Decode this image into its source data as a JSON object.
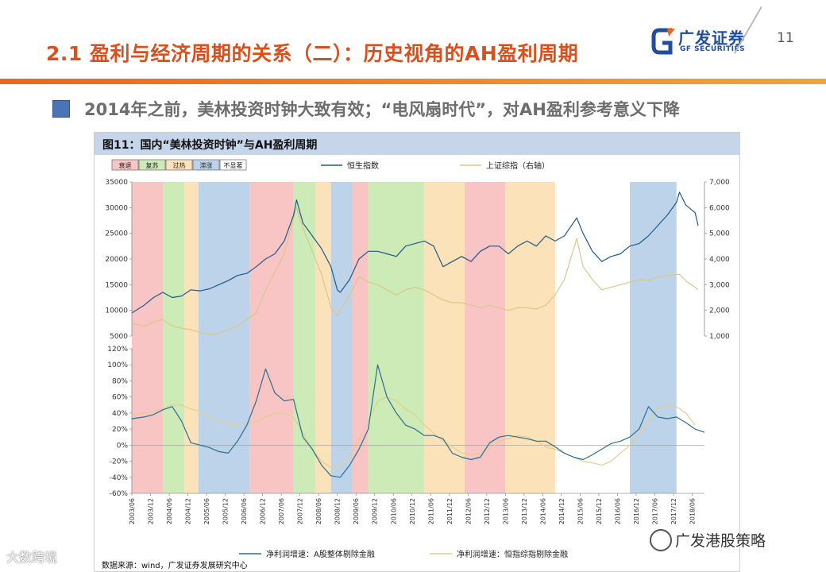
{
  "header": {
    "title": "2.1 盈利与经济周期的关系（二）：历史视角的AH盈利周期",
    "page_number": "11"
  },
  "logo": {
    "name_cn": "广发证券",
    "name_en": "GF SECURITIES"
  },
  "subtitle": "2014年之前，美林投资时钟大致有效；“电风扇时代”，对AH盈利参考意义下降",
  "figure_title": "图11：国内“美林投资时钟”与AH盈利周期",
  "source": "数据来源：wind，广发证券发展研究中心",
  "watermark_left": "大数跨境",
  "watermark_right": "广发港股策略",
  "colors": {
    "recession": "#f9c4c4",
    "recovery": "#cdebb7",
    "overheat": "#fbe2b9",
    "stagflation": "#bcd3ea",
    "hsi": "#1f5a8a",
    "shci": "#d9c88a",
    "growth_a": "#2d6e8e",
    "growth_hsi": "#e2cf8c"
  },
  "chart_data": [
    {
      "type": "line",
      "title": "",
      "regime_legend": [
        "衰退",
        "复苏",
        "过热",
        "滞涨",
        "不显著"
      ],
      "regimes": [
        {
          "name": "衰退",
          "start": 2003.42,
          "end": 2004.25
        },
        {
          "name": "复苏",
          "start": 2004.25,
          "end": 2004.83
        },
        {
          "name": "过热",
          "start": 2004.83,
          "end": 2005.2
        },
        {
          "name": "滞涨",
          "start": 2005.2,
          "end": 2006.58
        },
        {
          "name": "衰退",
          "start": 2006.58,
          "end": 2007.75
        },
        {
          "name": "复苏",
          "start": 2007.75,
          "end": 2008.33
        },
        {
          "name": "过热",
          "start": 2008.33,
          "end": 2008.75
        },
        {
          "name": "滞涨",
          "start": 2008.75,
          "end": 2009.33
        },
        {
          "name": "衰退",
          "start": 2009.33,
          "end": 2009.75
        },
        {
          "name": "复苏",
          "start": 2009.75,
          "end": 2011.25
        },
        {
          "name": "过热",
          "start": 2011.25,
          "end": 2012.33
        },
        {
          "name": "衰退",
          "start": 2012.33,
          "end": 2013.42
        },
        {
          "name": "过热",
          "start": 2013.42,
          "end": 2014.75
        },
        {
          "name": "滞涨",
          "start": 2016.75,
          "end": 2018.0
        }
      ],
      "series": [
        {
          "name": "恒生指数",
          "axis": "left",
          "x": [
            2003.42,
            2003.75,
            2004.0,
            2004.25,
            2004.5,
            2004.75,
            2005.0,
            2005.25,
            2005.5,
            2005.75,
            2006.0,
            2006.25,
            2006.5,
            2006.75,
            2007.0,
            2007.25,
            2007.5,
            2007.75,
            2007.83,
            2008.0,
            2008.25,
            2008.5,
            2008.75,
            2008.92,
            2009.0,
            2009.25,
            2009.5,
            2009.75,
            2010.0,
            2010.25,
            2010.5,
            2010.75,
            2011.0,
            2011.25,
            2011.5,
            2011.75,
            2012.0,
            2012.25,
            2012.5,
            2012.75,
            2013.0,
            2013.25,
            2013.5,
            2013.75,
            2014.0,
            2014.25,
            2014.5,
            2014.75,
            2015.0,
            2015.33,
            2015.5,
            2015.75,
            2016.0,
            2016.25,
            2016.5,
            2016.75,
            2017.0,
            2017.25,
            2017.5,
            2017.75,
            2018.0,
            2018.08,
            2018.25,
            2018.5,
            2018.58
          ],
          "values": [
            9500,
            11000,
            12500,
            13500,
            12500,
            12800,
            14000,
            13800,
            14200,
            15000,
            15800,
            16800,
            17200,
            18500,
            20000,
            21000,
            23500,
            28500,
            31500,
            27000,
            24500,
            22000,
            18500,
            14000,
            13500,
            16000,
            20000,
            21500,
            21500,
            21000,
            20500,
            22500,
            23000,
            23500,
            22500,
            18500,
            19500,
            20500,
            19500,
            21500,
            22500,
            22500,
            21000,
            22500,
            23500,
            22500,
            24500,
            23500,
            24500,
            28000,
            25000,
            21500,
            19500,
            20500,
            21000,
            22500,
            23000,
            24500,
            26500,
            28500,
            31000,
            33000,
            30500,
            29000,
            26500
          ]
        },
        {
          "name": "上证综指（右轴）",
          "axis": "right",
          "x": [
            2003.42,
            2003.75,
            2004.0,
            2004.25,
            2004.5,
            2004.75,
            2005.0,
            2005.25,
            2005.5,
            2005.75,
            2006.0,
            2006.25,
            2006.5,
            2006.75,
            2007.0,
            2007.25,
            2007.5,
            2007.75,
            2007.83,
            2008.0,
            2008.25,
            2008.5,
            2008.75,
            2008.92,
            2009.0,
            2009.25,
            2009.5,
            2009.75,
            2010.0,
            2010.25,
            2010.5,
            2010.75,
            2011.0,
            2011.25,
            2011.5,
            2011.75,
            2012.0,
            2012.25,
            2012.5,
            2012.75,
            2013.0,
            2013.25,
            2013.5,
            2013.75,
            2014.0,
            2014.25,
            2014.5,
            2014.75,
            2015.0,
            2015.33,
            2015.5,
            2015.75,
            2016.0,
            2016.25,
            2016.5,
            2016.75,
            2017.0,
            2017.25,
            2017.5,
            2017.75,
            2018.0,
            2018.08,
            2018.25,
            2018.5,
            2018.58
          ],
          "values": [
            1500,
            1380,
            1550,
            1650,
            1400,
            1300,
            1250,
            1150,
            1050,
            1100,
            1250,
            1400,
            1650,
            1900,
            2800,
            3500,
            4200,
            5600,
            6000,
            5200,
            4300,
            3400,
            2100,
            1800,
            2000,
            2600,
            3300,
            3100,
            3000,
            2800,
            2600,
            2800,
            2900,
            2800,
            2600,
            2400,
            2300,
            2300,
            2200,
            2100,
            2200,
            2100,
            2000,
            2100,
            2100,
            2050,
            2200,
            2600,
            3200,
            4800,
            3700,
            3200,
            2800,
            2900,
            3000,
            3100,
            3200,
            3150,
            3300,
            3350,
            3400,
            3400,
            3150,
            2900,
            2800
          ]
        }
      ],
      "left_axis": {
        "ylim": [
          5000,
          35000
        ],
        "ticks": [
          5000,
          10000,
          15000,
          20000,
          25000,
          30000,
          35000
        ]
      },
      "right_axis": {
        "ylim": [
          1000,
          7000
        ],
        "ticks": [
          "1,000",
          "2,000",
          "3,000",
          "4,000",
          "5,000",
          "6,000",
          "7,000"
        ]
      },
      "legend": [
        "恒生指数",
        "上证综指（右轴）"
      ]
    },
    {
      "type": "line",
      "title": "",
      "series": [
        {
          "name": "净利润增速：A股整体剔除金融",
          "x": [
            2003.42,
            2003.75,
            2004.0,
            2004.25,
            2004.5,
            2004.75,
            2005.0,
            2005.25,
            2005.5,
            2005.75,
            2006.0,
            2006.25,
            2006.5,
            2006.75,
            2007.0,
            2007.25,
            2007.5,
            2007.75,
            2008.0,
            2008.25,
            2008.5,
            2008.75,
            2009.0,
            2009.25,
            2009.5,
            2009.75,
            2010.0,
            2010.25,
            2010.5,
            2010.75,
            2011.0,
            2011.25,
            2011.5,
            2011.75,
            2012.0,
            2012.25,
            2012.5,
            2012.75,
            2013.0,
            2013.25,
            2013.5,
            2013.75,
            2014.0,
            2014.25,
            2014.5,
            2014.75,
            2015.0,
            2015.25,
            2015.5,
            2015.75,
            2016.0,
            2016.25,
            2016.5,
            2016.75,
            2017.0,
            2017.25,
            2017.5,
            2017.75,
            2018.0,
            2018.25,
            2018.5,
            2018.75
          ],
          "values": [
            0.33,
            0.35,
            0.38,
            0.44,
            0.48,
            0.3,
            0.03,
            0.0,
            -0.03,
            -0.08,
            -0.1,
            0.05,
            0.25,
            0.55,
            0.95,
            0.65,
            0.55,
            0.57,
            0.1,
            -0.05,
            -0.25,
            -0.38,
            -0.4,
            -0.25,
            -0.05,
            0.2,
            1.0,
            0.6,
            0.4,
            0.25,
            0.2,
            0.12,
            0.12,
            0.08,
            -0.1,
            -0.15,
            -0.18,
            -0.15,
            0.03,
            0.1,
            0.12,
            0.1,
            0.08,
            0.05,
            0.05,
            -0.02,
            -0.1,
            -0.15,
            -0.18,
            -0.12,
            -0.05,
            0.02,
            0.05,
            0.1,
            0.2,
            0.48,
            0.35,
            0.33,
            0.35,
            0.28,
            0.2,
            0.16
          ]
        },
        {
          "name": "净利润增速：恒指综指剔除金融",
          "x": [
            2003.42,
            2003.75,
            2004.0,
            2004.25,
            2004.5,
            2004.75,
            2005.0,
            2005.25,
            2005.5,
            2005.75,
            2006.0,
            2006.25,
            2006.5,
            2006.75,
            2007.0,
            2007.25,
            2007.5,
            2007.75,
            2008.0,
            2008.25,
            2008.5,
            2008.75,
            2009.0,
            2009.25,
            2009.5,
            2009.75,
            2010.0,
            2010.25,
            2010.5,
            2010.75,
            2011.0,
            2011.25,
            2011.5,
            2011.75,
            2012.0,
            2012.25,
            2012.5,
            2012.75,
            2013.0,
            2013.25,
            2013.5,
            2013.75,
            2014.0,
            2014.25,
            2014.5,
            2014.75,
            2015.0,
            2015.25,
            2015.5,
            2015.75,
            2016.0,
            2016.25,
            2016.5,
            2016.75,
            2017.0,
            2017.25,
            2017.5,
            2017.75,
            2018.0,
            2018.25,
            2018.5
          ],
          "values": [
            0.38,
            0.4,
            0.42,
            0.46,
            0.5,
            0.5,
            0.45,
            0.42,
            0.35,
            0.3,
            0.27,
            0.25,
            0.25,
            0.3,
            0.35,
            0.4,
            0.4,
            0.35,
            0.15,
            -0.05,
            -0.2,
            -0.28,
            -0.25,
            -0.15,
            0.05,
            0.3,
            0.55,
            0.6,
            0.55,
            0.45,
            0.38,
            0.25,
            0.15,
            0.05,
            -0.02,
            -0.1,
            -0.12,
            -0.1,
            -0.05,
            0.05,
            0.08,
            0.12,
            0.1,
            0.05,
            -0.02,
            -0.05,
            -0.1,
            -0.15,
            -0.2,
            -0.22,
            -0.25,
            -0.2,
            -0.1,
            0.0,
            0.15,
            0.3,
            0.45,
            0.5,
            0.48,
            0.4,
            0.25
          ]
        }
      ],
      "yaxis": {
        "ylim": [
          -0.6,
          1.2
        ],
        "ticks": [
          "-60%",
          "-40%",
          "-20%",
          "0%",
          "20%",
          "40%",
          "60%",
          "80%",
          "100%",
          "120%"
        ]
      },
      "xaxis": {
        "tick_labels": [
          "2003/06",
          "2003/12",
          "2004/06",
          "2004/12",
          "2005/06",
          "2005/12",
          "2006/06",
          "2006/12",
          "2007/06",
          "2007/12",
          "2008/06",
          "2008/12",
          "2009/06",
          "2009/12",
          "2010/06",
          "2010/12",
          "2011/06",
          "2011/12",
          "2012/06",
          "2012/12",
          "2013/06",
          "2013/12",
          "2014/06",
          "2014/12",
          "2015/06",
          "2015/12",
          "2016/06",
          "2016/12",
          "2017/06",
          "2017/12",
          "2018/06"
        ]
      },
      "legend": [
        "净利润增速：A股整体剔除金融",
        "净利润增速：恒指综指剔除金融"
      ]
    }
  ]
}
